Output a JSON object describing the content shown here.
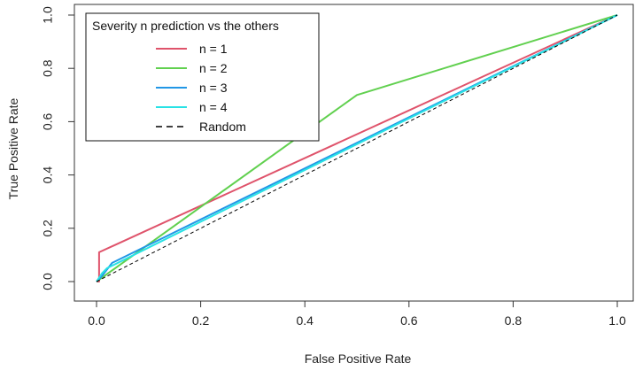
{
  "chart_data": {
    "type": "line",
    "xlabel": "False Positive Rate",
    "ylabel": "True Positive Rate",
    "xlim": [
      0,
      1
    ],
    "ylim": [
      0,
      1
    ],
    "x_ticks": [
      "0.0",
      "0.2",
      "0.4",
      "0.6",
      "0.8",
      "1.0"
    ],
    "y_ticks": [
      "0.0",
      "0.2",
      "0.4",
      "0.6",
      "0.8",
      "1.0"
    ],
    "grid": false,
    "legend": {
      "title": "Severity n prediction vs the others",
      "placement": "top-left"
    },
    "series": [
      {
        "name": "n = 1",
        "color": "#DF536B",
        "x": [
          0,
          0.005,
          0.005,
          1
        ],
        "y": [
          0,
          0.0,
          0.11,
          1
        ]
      },
      {
        "name": "n = 2",
        "color": "#61D04F",
        "x": [
          0,
          0.5,
          1
        ],
        "y": [
          0,
          0.7,
          1
        ]
      },
      {
        "name": "n = 3",
        "color": "#2297E6",
        "x": [
          0,
          0.01,
          0.03,
          1
        ],
        "y": [
          0,
          0.02,
          0.07,
          1
        ]
      },
      {
        "name": "n = 4",
        "color": "#28E2E5",
        "x": [
          0,
          0.01,
          0.02,
          1
        ],
        "y": [
          0,
          0.03,
          0.05,
          1
        ]
      },
      {
        "name": "Random",
        "color": "#000000",
        "dash": true,
        "x": [
          0,
          1
        ],
        "y": [
          0,
          1
        ]
      }
    ]
  }
}
